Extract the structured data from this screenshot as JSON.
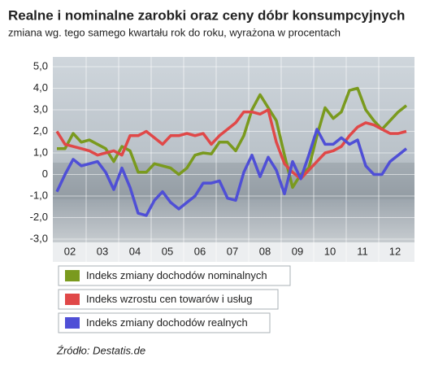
{
  "chart_data": {
    "type": "line",
    "title": "Realne i nominalne zarobki oraz ceny dóbr konsumpcyjnych",
    "subtitle": "zmiana wg. tego samego kwartału rok do roku, wyrażona w procentach",
    "source": "Źródło: Destatis.de",
    "x": [
      2002,
      2002.25,
      2002.5,
      2002.75,
      2003,
      2003.25,
      2003.5,
      2003.75,
      2004,
      2004.25,
      2004.5,
      2004.75,
      2005,
      2005.25,
      2005.5,
      2005.75,
      2006,
      2006.25,
      2006.5,
      2006.75,
      2007,
      2007.25,
      2007.5,
      2007.75,
      2008,
      2008.25,
      2008.5,
      2008.75,
      2009,
      2009.25,
      2009.5,
      2009.75,
      2010,
      2010.25,
      2010.5,
      2010.75,
      2011,
      2011.25,
      2011.5,
      2011.75,
      2012,
      2012.25,
      2012.5,
      2012.75
    ],
    "xlim": [
      2001.875,
      2013.0
    ],
    "xticks": [
      {
        "value": 2002.4,
        "label": "02"
      },
      {
        "value": 2003.4,
        "label": "03"
      },
      {
        "value": 2004.4,
        "label": "04"
      },
      {
        "value": 2005.4,
        "label": "05"
      },
      {
        "value": 2006.4,
        "label": "06"
      },
      {
        "value": 2007.4,
        "label": "07"
      },
      {
        "value": 2008.4,
        "label": "08"
      },
      {
        "value": 2009.4,
        "label": "09"
      },
      {
        "value": 2010.4,
        "label": "10"
      },
      {
        "value": 2011.4,
        "label": "11"
      },
      {
        "value": 2012.4,
        "label": "12"
      }
    ],
    "ylim": [
      -3,
      5
    ],
    "yticks": [
      {
        "value": 5,
        "label": "5,0"
      },
      {
        "value": 4,
        "label": "4,0"
      },
      {
        "value": 3,
        "label": "3,0"
      },
      {
        "value": 2,
        "label": "2,0"
      },
      {
        "value": 1,
        "label": "1,0"
      },
      {
        "value": 0,
        "label": "0"
      },
      {
        "value": -1,
        "label": "-1,0"
      },
      {
        "value": -2,
        "label": "-2,0"
      },
      {
        "value": -3,
        "label": "-3,0"
      }
    ],
    "series": [
      {
        "name": "Indeks zmiany dochodów nominalnych",
        "color": "#7a9a1e",
        "values": [
          1.2,
          1.2,
          1.9,
          1.5,
          1.6,
          1.4,
          1.2,
          0.6,
          1.3,
          1.1,
          0.1,
          0.1,
          0.5,
          0.4,
          0.3,
          0.0,
          0.3,
          0.9,
          1.0,
          0.95,
          1.5,
          1.5,
          1.1,
          1.8,
          3.0,
          3.7,
          3.1,
          2.5,
          0.9,
          -0.6,
          0.0,
          0.3,
          1.8,
          3.1,
          2.6,
          2.9,
          3.9,
          4.0,
          3.0,
          2.5,
          2.1,
          2.5,
          2.9,
          3.2
        ]
      },
      {
        "name": "Indeks wzrostu cen towarów i usług",
        "color": "#e04848",
        "values": [
          2.0,
          1.4,
          1.3,
          1.2,
          1.1,
          0.9,
          1.0,
          1.1,
          0.9,
          1.8,
          1.8,
          2.0,
          1.7,
          1.4,
          1.8,
          1.8,
          1.9,
          1.8,
          1.9,
          1.4,
          1.8,
          2.1,
          2.4,
          2.9,
          2.9,
          2.8,
          3.0,
          1.5,
          0.5,
          0.1,
          -0.2,
          0.2,
          0.6,
          1.0,
          1.1,
          1.3,
          1.8,
          2.2,
          2.4,
          2.3,
          2.1,
          1.9,
          1.9,
          2.0
        ]
      },
      {
        "name": "Indeks zmiany dochodów realnych",
        "color": "#4f4fd6",
        "values": [
          -0.8,
          0.0,
          0.7,
          0.4,
          0.5,
          0.6,
          0.1,
          -0.7,
          0.3,
          -0.6,
          -1.8,
          -1.9,
          -1.2,
          -0.8,
          -1.3,
          -1.6,
          -1.3,
          -1.0,
          -0.4,
          -0.4,
          -0.3,
          -1.1,
          -1.2,
          0.1,
          0.9,
          -0.1,
          0.8,
          0.2,
          -0.9,
          0.6,
          -0.2,
          0.9,
          2.1,
          1.4,
          1.4,
          1.7,
          1.4,
          1.6,
          0.4,
          0.0,
          0.0,
          0.6,
          0.9,
          1.2
        ]
      }
    ]
  }
}
